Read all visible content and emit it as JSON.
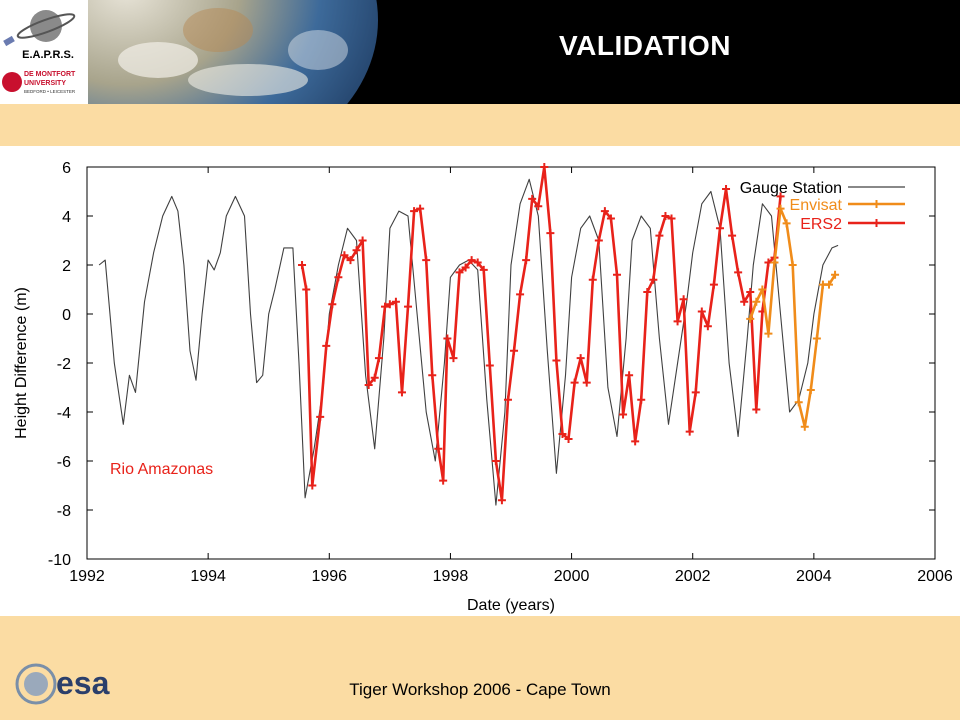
{
  "header": {
    "title": "VALIDATION",
    "logo_text": "E.A.P.R.S.",
    "university_line1": "DE MONTFORT",
    "university_line2": "UNIVERSITY",
    "university_line3": "BEDFORD • LEICESTER"
  },
  "footer": {
    "text": "Tiger Workshop 2006 - Cape Town",
    "esa_logo_text": "esa"
  },
  "chart_data": {
    "type": "line",
    "title": "",
    "xlabel": "Date (years)",
    "ylabel": "Height Difference (m)",
    "xlim": [
      1992,
      2006
    ],
    "ylim": [
      -10,
      6
    ],
    "xticks": [
      1992,
      1994,
      1996,
      1998,
      2000,
      2002,
      2004,
      2006
    ],
    "yticks": [
      -10,
      -8,
      -6,
      -4,
      -2,
      0,
      2,
      4,
      6
    ],
    "annotation": "Rio Amazonas",
    "legend_position": "top-right",
    "series": [
      {
        "name": "Gauge Station",
        "color": "#404040",
        "marker": "none",
        "x": [
          1992.2,
          1992.3,
          1992.45,
          1992.6,
          1992.7,
          1992.8,
          1992.95,
          1993.1,
          1993.25,
          1993.4,
          1993.5,
          1993.6,
          1993.7,
          1993.8,
          1993.9,
          1994.0,
          1994.1,
          1994.2,
          1994.3,
          1994.45,
          1994.6,
          1994.7,
          1994.8,
          1994.9,
          1995.0,
          1995.1,
          1995.25,
          1995.4,
          1995.5,
          1995.6,
          1995.75,
          1995.9,
          1996.0,
          1996.15,
          1996.3,
          1996.45,
          1996.6,
          1996.75,
          1996.9,
          1997.0,
          1997.15,
          1997.3,
          1997.45,
          1997.6,
          1997.75,
          1997.9,
          1998.0,
          1998.15,
          1998.3,
          1998.45,
          1998.6,
          1998.75,
          1998.9,
          1999.0,
          1999.15,
          1999.3,
          1999.45,
          1999.6,
          1999.75,
          1999.9,
          2000.0,
          2000.15,
          2000.3,
          2000.45,
          2000.6,
          2000.75,
          2000.9,
          2001.0,
          2001.15,
          2001.3,
          2001.45,
          2001.6,
          2001.75,
          2001.9,
          2002.0,
          2002.15,
          2002.3,
          2002.45,
          2002.6,
          2002.75,
          2002.9,
          2003.0,
          2003.15,
          2003.3,
          2003.45,
          2003.6,
          2003.75,
          2003.9,
          2004.0,
          2004.15,
          2004.3,
          2004.4
        ],
        "y": [
          2.0,
          2.2,
          -2.0,
          -4.5,
          -2.5,
          -3.2,
          0.5,
          2.5,
          4.0,
          4.8,
          4.2,
          2.0,
          -1.5,
          -2.7,
          0.0,
          2.2,
          1.8,
          2.5,
          4.0,
          4.8,
          4.0,
          0.0,
          -2.8,
          -2.5,
          0.0,
          1.0,
          2.7,
          2.7,
          -2.0,
          -7.5,
          -5.5,
          -3.0,
          0.0,
          2.0,
          3.5,
          3.0,
          -2.5,
          -5.5,
          -1.0,
          3.5,
          4.2,
          4.0,
          0.0,
          -4.0,
          -6.0,
          -2.0,
          1.5,
          2.0,
          2.2,
          1.8,
          -3.5,
          -7.8,
          -4.0,
          2.0,
          4.5,
          5.5,
          4.0,
          -1.5,
          -6.5,
          -2.5,
          1.5,
          3.5,
          4.0,
          3.0,
          -3.0,
          -5.0,
          -1.0,
          3.0,
          4.0,
          3.5,
          -1.0,
          -4.5,
          -2.0,
          0.5,
          2.5,
          4.5,
          5.0,
          3.5,
          -2.0,
          -5.0,
          -1.0,
          2.0,
          4.5,
          4.0,
          0.0,
          -4.0,
          -3.5,
          -2.0,
          0.0,
          2.0,
          2.7,
          2.8
        ]
      },
      {
        "name": "ERS2",
        "color": "#e8221a",
        "marker": "+",
        "x": [
          1995.55,
          1995.62,
          1995.72,
          1995.85,
          1995.95,
          1996.05,
          1996.15,
          1996.25,
          1996.35,
          1996.45,
          1996.55,
          1996.65,
          1996.75,
          1996.82,
          1996.92,
          1997.0,
          1997.1,
          1997.2,
          1997.3,
          1997.4,
          1997.5,
          1997.6,
          1997.7,
          1997.8,
          1997.88,
          1997.95,
          1998.05,
          1998.15,
          1998.25,
          1998.35,
          1998.45,
          1998.55,
          1998.65,
          1998.75,
          1998.85,
          1998.95,
          1999.05,
          1999.15,
          1999.25,
          1999.35,
          1999.45,
          1999.55,
          1999.65,
          1999.75,
          1999.85,
          1999.95,
          2000.05,
          2000.15,
          2000.25,
          2000.35,
          2000.45,
          2000.55,
          2000.65,
          2000.75,
          2000.85,
          2000.95,
          2001.05,
          2001.15,
          2001.25,
          2001.35,
          2001.45,
          2001.55,
          2001.65,
          2001.75,
          2001.85,
          2001.95,
          2002.05,
          2002.15,
          2002.25,
          2002.35,
          2002.45,
          2002.55,
          2002.65,
          2002.75,
          2002.85,
          2002.95,
          2003.05,
          2003.15,
          2003.25,
          2003.35,
          2003.45
        ],
        "y": [
          2.0,
          1.0,
          -7.0,
          -4.2,
          -1.3,
          0.4,
          1.5,
          2.4,
          2.2,
          2.6,
          3.0,
          -2.9,
          -2.6,
          -1.8,
          0.3,
          0.4,
          0.5,
          -3.2,
          0.3,
          4.2,
          4.3,
          2.2,
          -2.5,
          -5.5,
          -6.8,
          -1.0,
          -1.8,
          1.7,
          1.9,
          2.2,
          2.1,
          1.8,
          -2.1,
          -6.0,
          -7.6,
          -3.5,
          -1.5,
          0.8,
          2.2,
          4.7,
          4.4,
          6.0,
          3.3,
          -1.9,
          -4.9,
          -5.1,
          -2.8,
          -1.8,
          -2.8,
          1.4,
          3.0,
          4.2,
          3.9,
          1.6,
          -4.1,
          -2.5,
          -5.2,
          -3.5,
          0.9,
          1.4,
          3.2,
          4.0,
          3.9,
          -0.3,
          0.6,
          -4.8,
          -3.2,
          0.1,
          -0.5,
          1.2,
          3.5,
          5.1,
          3.2,
          1.7,
          0.5,
          0.9,
          -3.9,
          0.1,
          2.1,
          2.3,
          4.8
        ]
      },
      {
        "name": "Envisat",
        "color": "#f08c1a",
        "marker": "+",
        "x": [
          2002.95,
          2003.05,
          2003.15,
          2003.25,
          2003.35,
          2003.45,
          2003.55,
          2003.65,
          2003.75,
          2003.85,
          2003.95,
          2004.05,
          2004.15,
          2004.25,
          2004.35
        ],
        "y": [
          -0.2,
          0.5,
          1.0,
          -0.8,
          2.1,
          4.3,
          3.7,
          2.0,
          -3.6,
          -4.6,
          -3.1,
          -1.0,
          1.2,
          1.2,
          1.6
        ]
      }
    ]
  }
}
